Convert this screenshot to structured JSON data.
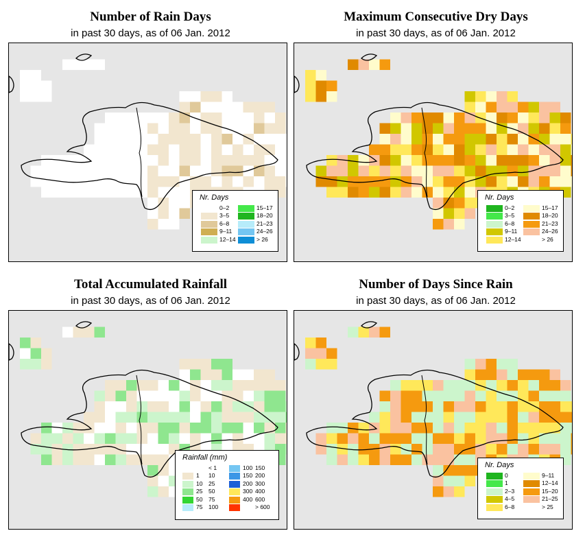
{
  "panels": [
    {
      "title": "Number of Rain Days",
      "subtitle": "in past 30 days, as of  06 Jan. 2012",
      "legend": {
        "title": "Nr. Days",
        "items": [
          {
            "label": "0–2",
            "color": "#ffffff"
          },
          {
            "label": "3–5",
            "color": "#f2e6cf"
          },
          {
            "label": "6–8",
            "color": "#e0c99a"
          },
          {
            "label": "9–11",
            "color": "#cfae52"
          },
          {
            "label": "12–14",
            "color": "#ccf5cc"
          },
          {
            "label": "15–17",
            "color": "#44e84a"
          },
          {
            "label": "18–20",
            "color": "#1fb51f"
          },
          {
            "label": "21–23",
            "color": "#b6ecfa"
          },
          {
            "label": "24–26",
            "color": "#74c6f2"
          },
          {
            "label": "> 26",
            "color": "#0e8ed6"
          }
        ]
      },
      "grid_palette": [
        "#ffffff",
        "#f2e6cf",
        "#e0c99a"
      ]
    },
    {
      "title": "Maximum Consecutive Dry Days",
      "subtitle": "in past 30 days, as of  06 Jan. 2012",
      "legend": {
        "title": "Nr. Days",
        "items": [
          {
            "label": "0–2",
            "color": "#1fb51f"
          },
          {
            "label": "3–5",
            "color": "#44e84a"
          },
          {
            "label": "6–8",
            "color": "#ccf5cc"
          },
          {
            "label": "9–11",
            "color": "#d1c700"
          },
          {
            "label": "12–14",
            "color": "#ffe85a"
          },
          {
            "label": "15–17",
            "color": "#fffccc"
          },
          {
            "label": "18–20",
            "color": "#e08a00"
          },
          {
            "label": "21–23",
            "color": "#f59a0f"
          },
          {
            "label": "24–26",
            "color": "#fac2a0"
          },
          {
            "label": "> 26",
            "color": "#ffffff"
          }
        ]
      },
      "grid_palette": [
        "#e08a00",
        "#d1c700",
        "#fffccc",
        "#f59a0f",
        "#ffe85a",
        "#fac2a0"
      ]
    },
    {
      "title": "Total Accumulated Rainfall",
      "subtitle": "in past 30 days, as of  06 Jan. 2012",
      "legend": {
        "title": "Rainfall (mm)",
        "items": [
          {
            "from": "",
            "to": "< 1",
            "color": "#ffffff"
          },
          {
            "from": "1",
            "to": "10",
            "color": "#f2e6cf"
          },
          {
            "from": "10",
            "to": "25",
            "color": "#ccf5cc"
          },
          {
            "from": "25",
            "to": "50",
            "color": "#8fe68f"
          },
          {
            "from": "50",
            "to": "75",
            "color": "#33d633"
          },
          {
            "from": "75",
            "to": "100",
            "color": "#b6ecfa"
          },
          {
            "from": "100",
            "to": "150",
            "color": "#74c6f2"
          },
          {
            "from": "150",
            "to": "200",
            "color": "#3b96e6"
          },
          {
            "from": "200",
            "to": "300",
            "color": "#1c5fd6"
          },
          {
            "from": "300",
            "to": "400",
            "color": "#ffe85a"
          },
          {
            "from": "400",
            "to": "600",
            "color": "#f59a0f"
          },
          {
            "from": "",
            "to": "> 600",
            "color": "#ff3300"
          }
        ]
      },
      "grid_palette": [
        "#f2e6cf",
        "#ccf5cc",
        "#8fe68f",
        "#ffffff",
        "#f2e6cf"
      ]
    },
    {
      "title": "Number of Days Since Rain",
      "subtitle": "in past 30 days, as of  06 Jan. 2012",
      "legend": {
        "title": "Nr. Days",
        "items": [
          {
            "label": "0",
            "color": "#1fb51f"
          },
          {
            "label": "1",
            "color": "#44e84a"
          },
          {
            "label": "2–3",
            "color": "#ccf5cc"
          },
          {
            "label": "4–5",
            "color": "#d1c700"
          },
          {
            "label": "6–8",
            "color": "#ffe85a"
          },
          {
            "label": "9–11",
            "color": "#fffccc"
          },
          {
            "label": "12–14",
            "color": "#e08a00"
          },
          {
            "label": "15–20",
            "color": "#f59a0f"
          },
          {
            "label": "21–25",
            "color": "#fac2a0"
          },
          {
            "label": "> 25",
            "color": "#ffffff"
          }
        ]
      },
      "grid_palette": [
        "#f59a0f",
        "#ccf5cc",
        "#ffe85a",
        "#f59a0f",
        "#ccf5cc",
        "#fac2a0"
      ]
    }
  ]
}
